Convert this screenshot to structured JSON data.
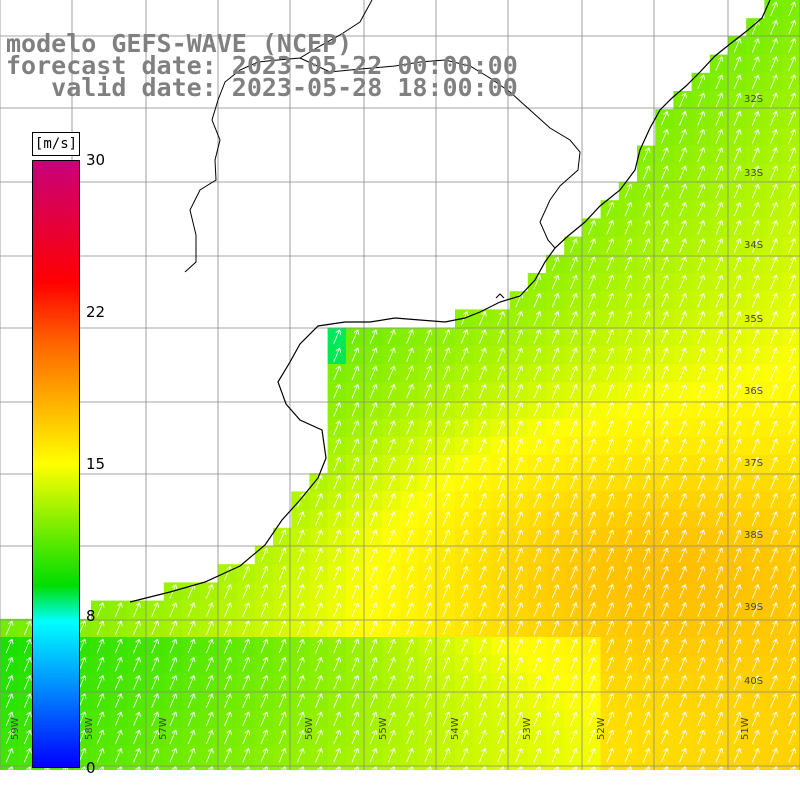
{
  "header": {
    "line1": "modelo GEFS-WAVE (NCEP)",
    "line2": "forecast date: 2023-05-22 00:00:00",
    "line3": "   valid date: 2023-05-28 18:00:00"
  },
  "colorbar": {
    "unit": "[m/s]",
    "ticks": [
      "30",
      "22",
      "15",
      "8",
      "0"
    ],
    "colors": [
      "#c8007a",
      "#ff0000",
      "#ff6400",
      "#ffff00",
      "#00dd00",
      "#00ffff",
      "#0000ff"
    ]
  },
  "map": {
    "longitude_labels": [
      "59W",
      "58W",
      "57W",
      "56W",
      "55W",
      "54W",
      "53W",
      "52W",
      "51W"
    ],
    "latitude_labels": [
      "32S",
      "33S",
      "34S",
      "35S",
      "36S",
      "37S",
      "38S",
      "39S",
      "40S"
    ],
    "field": "wind speed",
    "wind_direction": "from south-southwest"
  }
}
